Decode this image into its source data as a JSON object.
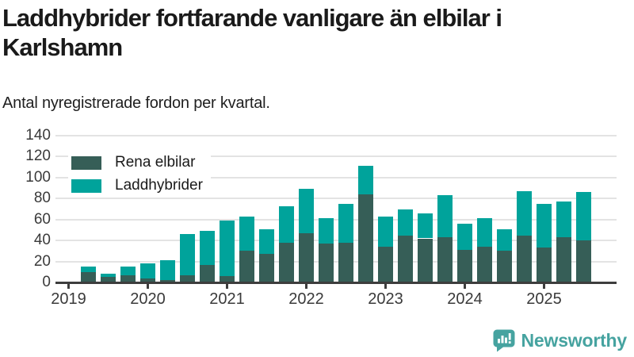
{
  "chart_data": {
    "type": "bar",
    "stacked": true,
    "title_line1": "Laddhybrider fortfarande vanligare än elbilar i",
    "title_line2": "Karlshamn",
    "subtitle": "Antal nyregistrerade fordon per kvartal.",
    "x": [
      "2019 Q1",
      "2019 Q2",
      "2019 Q3",
      "2019 Q4",
      "2020 Q1",
      "2020 Q2",
      "2020 Q3",
      "2020 Q4",
      "2021 Q1",
      "2021 Q2",
      "2021 Q3",
      "2021 Q4",
      "2022 Q1",
      "2022 Q2",
      "2022 Q3",
      "2022 Q4",
      "2023 Q1",
      "2023 Q2",
      "2023 Q3",
      "2023 Q4",
      "2024 Q1",
      "2024 Q2",
      "2024 Q3",
      "2024 Q4",
      "2025 Q1",
      "2025 Q2",
      "2025 Q3"
    ],
    "series": [
      {
        "name": "Rena elbilar",
        "color": "#365e57",
        "values": [
          0,
          10,
          5,
          7,
          4,
          2,
          7,
          17,
          6,
          30,
          27,
          38,
          47,
          37,
          38,
          84,
          34,
          45,
          42,
          43,
          31,
          34,
          30,
          45,
          33,
          43,
          40
        ]
      },
      {
        "name": "Laddhybrider",
        "color": "#00a39b",
        "values": [
          0,
          5,
          3,
          8,
          14,
          19,
          39,
          32,
          53,
          33,
          24,
          35,
          42,
          24,
          37,
          27,
          29,
          25,
          24,
          40,
          25,
          27,
          21,
          42,
          42,
          34,
          46
        ]
      }
    ],
    "ylim": [
      0,
      140
    ],
    "yticks": [
      0,
      20,
      40,
      60,
      80,
      100,
      120,
      140
    ],
    "xtick_labels": [
      "2019",
      "2020",
      "2021",
      "2022",
      "2023",
      "2024",
      "2025"
    ],
    "xtick_indices": [
      0,
      4,
      8,
      12,
      16,
      20,
      24
    ],
    "grid": "horizontal",
    "legend_position": "inside-top-left"
  },
  "branding": {
    "logo_text": "Newsworthy",
    "logo_color": "#46a3a0"
  },
  "style_colors": {
    "axis": "#3d3d3d",
    "gridline": "#e3e3e3",
    "title_text": "#1a1a1a",
    "tick_text": "#3a3a3a"
  }
}
